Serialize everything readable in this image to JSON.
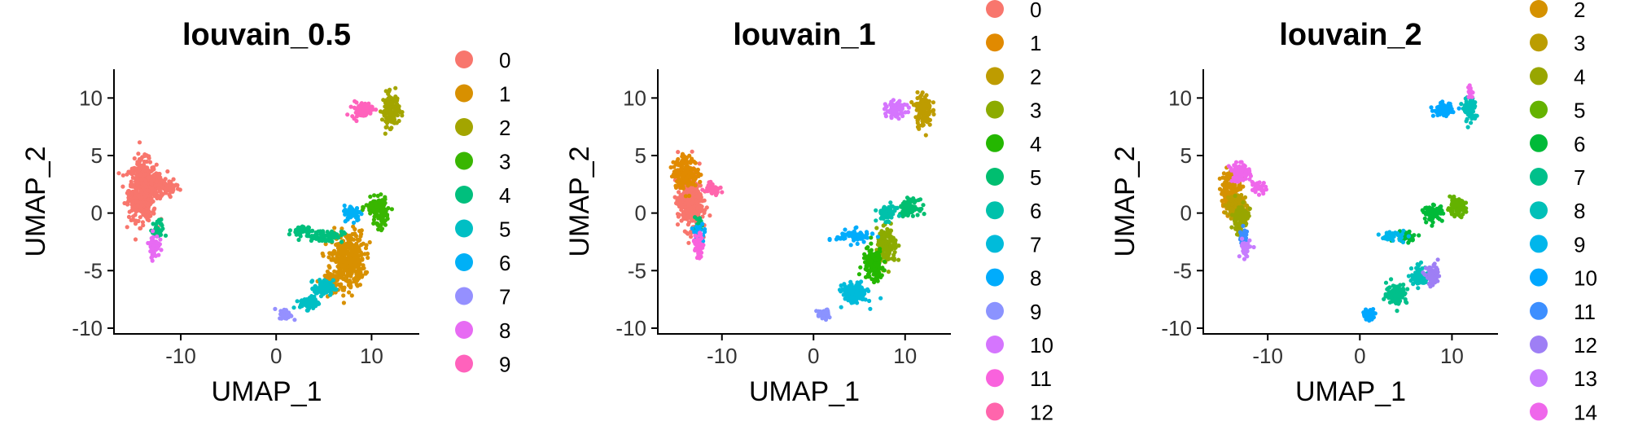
{
  "chart_data": [
    {
      "type": "scatter",
      "title": "louvain_0.5",
      "xlabel": "UMAP_1",
      "ylabel": "UMAP_2",
      "xlim": [
        -17,
        15
      ],
      "ylim": [
        -10.5,
        12.5
      ],
      "xticks": [
        -10,
        0,
        10
      ],
      "yticks": [
        10,
        5,
        0,
        -5,
        -10
      ],
      "xtick_labels": [
        "-10",
        "0",
        "10"
      ],
      "ytick_labels": [
        "10",
        "5",
        "0",
        "-5",
        "-10"
      ],
      "legend": {
        "position": "right",
        "labels": [
          "0",
          "1",
          "2",
          "3",
          "4",
          "5",
          "6",
          "7",
          "8",
          "9"
        ]
      },
      "colors": [
        "#F8766D",
        "#D89000",
        "#A3A500",
        "#39B600",
        "#00BF7D",
        "#00BFC4",
        "#00B0F6",
        "#9590FF",
        "#E76BF3",
        "#FF62BC"
      ],
      "clusters": [
        {
          "name": "0",
          "blobs": [
            [
              -14,
              2,
              1.3,
              2.3,
              520
            ],
            [
              -12.5,
              2.5,
              1.0,
              1.0,
              120
            ],
            [
              -11,
              2.2,
              0.8,
              0.5,
              40
            ]
          ]
        },
        {
          "name": "1",
          "blobs": [
            [
              7.5,
              -4,
              1.6,
              2.2,
              360
            ],
            [
              6,
              -6,
              0.8,
              0.8,
              60
            ]
          ]
        },
        {
          "name": "2",
          "blobs": [
            [
              12,
              9,
              0.8,
              1.3,
              140
            ]
          ]
        },
        {
          "name": "3",
          "blobs": [
            [
              10.5,
              0.5,
              1.0,
              0.7,
              110
            ],
            [
              11,
              -0.5,
              0.6,
              0.8,
              40
            ]
          ]
        },
        {
          "name": "4",
          "blobs": [
            [
              5,
              -2,
              1.8,
              0.5,
              80
            ],
            [
              2.5,
              -1.5,
              0.8,
              0.4,
              40
            ],
            [
              -12.5,
              -1.5,
              0.6,
              0.8,
              30
            ]
          ]
        },
        {
          "name": "5",
          "blobs": [
            [
              5,
              -6.5,
              0.9,
              0.6,
              90
            ],
            [
              3.5,
              -7.8,
              0.9,
              0.5,
              80
            ]
          ]
        },
        {
          "name": "6",
          "blobs": [
            [
              8,
              0,
              0.8,
              0.6,
              70
            ]
          ]
        },
        {
          "name": "7",
          "blobs": [
            [
              1,
              -8.8,
              0.6,
              0.4,
              50
            ]
          ]
        },
        {
          "name": "8",
          "blobs": [
            [
              -12.8,
              -2.8,
              0.5,
              0.9,
              60
            ]
          ]
        },
        {
          "name": "9",
          "blobs": [
            [
              9,
              9,
              1.0,
              0.6,
              90
            ]
          ]
        }
      ]
    },
    {
      "type": "scatter",
      "title": "louvain_1",
      "xlabel": "UMAP_1",
      "ylabel": "UMAP_2",
      "xlim": [
        -17,
        15
      ],
      "ylim": [
        -10.5,
        12.5
      ],
      "xticks": [
        -10,
        0,
        10
      ],
      "yticks": [
        10,
        5,
        0,
        -5,
        -10
      ],
      "xtick_labels": [
        "-10",
        "0",
        "10"
      ],
      "ytick_labels": [
        "10",
        "5",
        "0",
        "-5",
        "-10"
      ],
      "legend": {
        "position": "right",
        "labels": [
          "0",
          "1",
          "2",
          "3",
          "4",
          "5",
          "6",
          "7",
          "8",
          "9",
          "10",
          "11",
          "12"
        ]
      },
      "colors": [
        "#F8766D",
        "#E18A00",
        "#BE9C00",
        "#8CAB00",
        "#24B700",
        "#00BE70",
        "#00C1AB",
        "#00BBDA",
        "#00ACFC",
        "#8B93FF",
        "#D575FE",
        "#F962DD",
        "#FF65AC"
      ],
      "clusters": [
        {
          "name": "0",
          "blobs": [
            [
              -13.5,
              1,
              1.2,
              2.2,
              380
            ]
          ]
        },
        {
          "name": "1",
          "blobs": [
            [
              -14,
              3.5,
              1.2,
              1.2,
              200
            ]
          ]
        },
        {
          "name": "2",
          "blobs": [
            [
              12,
              9,
              0.8,
              1.3,
              140
            ]
          ]
        },
        {
          "name": "3",
          "blobs": [
            [
              8,
              -3,
              1.0,
              1.4,
              150
            ]
          ]
        },
        {
          "name": "4",
          "blobs": [
            [
              6.5,
              -4.5,
              1.0,
              1.3,
              150
            ]
          ]
        },
        {
          "name": "5",
          "blobs": [
            [
              10.5,
              0.5,
              0.9,
              0.6,
              100
            ],
            [
              -12.5,
              -1,
              0.5,
              0.6,
              20
            ]
          ]
        },
        {
          "name": "6",
          "blobs": [
            [
              8,
              0,
              0.9,
              0.6,
              80
            ]
          ]
        },
        {
          "name": "7",
          "blobs": [
            [
              4.5,
              -7,
              1.2,
              0.8,
              140
            ]
          ]
        },
        {
          "name": "8",
          "blobs": [
            [
              4.5,
              -2,
              1.8,
              0.5,
              80
            ],
            [
              -12.5,
              -1.8,
              0.6,
              0.7,
              30
            ]
          ]
        },
        {
          "name": "9",
          "blobs": [
            [
              1,
              -8.8,
              0.6,
              0.4,
              50
            ]
          ]
        },
        {
          "name": "10",
          "blobs": [
            [
              9,
              9,
              1.0,
              0.6,
              90
            ]
          ]
        },
        {
          "name": "11",
          "blobs": [
            [
              -12.6,
              -2.8,
              0.5,
              0.9,
              50
            ]
          ]
        },
        {
          "name": "12",
          "blobs": [
            [
              -11,
              2.2,
              0.8,
              0.5,
              40
            ]
          ]
        }
      ]
    },
    {
      "type": "scatter",
      "title": "louvain_2",
      "xlabel": "UMAP_1",
      "ylabel": "UMAP_2",
      "xlim": [
        -17,
        15
      ],
      "ylim": [
        -10.5,
        12.5
      ],
      "xticks": [
        -10,
        0,
        10
      ],
      "yticks": [
        10,
        5,
        0,
        -5,
        -10
      ],
      "xtick_labels": [
        "-10",
        "0",
        "10"
      ],
      "ytick_labels": [
        "10",
        "5",
        "0",
        "-5",
        "-10"
      ],
      "legend": {
        "position": "right",
        "labels": [
          "2",
          "3",
          "4",
          "5",
          "6",
          "7",
          "8",
          "9",
          "10",
          "11",
          "12",
          "13",
          "14"
        ]
      },
      "colors": [
        "#D59100",
        "#BB9D00",
        "#98A600",
        "#64B200",
        "#00BA38",
        "#00C08B",
        "#00C0B8",
        "#00B6EB",
        "#00A7FF",
        "#3D8FFF",
        "#9E7FF5",
        "#C77CFF",
        "#EF67EB"
      ],
      "clusters": [
        {
          "name": "2",
          "blobs": [
            [
              -14,
              2,
              1.0,
              1.5,
              180
            ]
          ]
        },
        {
          "name": "3",
          "blobs": [
            [
              -13.3,
              0.5,
              1.0,
              1.0,
              140
            ]
          ]
        },
        {
          "name": "4",
          "blobs": [
            [
              -13,
              -0.5,
              0.8,
              1.2,
              100
            ]
          ]
        },
        {
          "name": "5",
          "blobs": [
            [
              10.5,
              0.5,
              0.9,
              0.6,
              100
            ]
          ]
        },
        {
          "name": "6",
          "blobs": [
            [
              8,
              0,
              0.9,
              0.6,
              80
            ],
            [
              5,
              -2,
              1.2,
              0.4,
              40
            ]
          ]
        },
        {
          "name": "7",
          "blobs": [
            [
              4,
              -7,
              1.0,
              0.8,
              120
            ]
          ]
        },
        {
          "name": "8",
          "blobs": [
            [
              6.5,
              -5.5,
              0.8,
              0.8,
              80
            ],
            [
              12,
              9,
              0.6,
              1.0,
              80
            ]
          ]
        },
        {
          "name": "9",
          "blobs": [
            [
              3.5,
              -2,
              1.2,
              0.4,
              40
            ]
          ]
        },
        {
          "name": "10",
          "blobs": [
            [
              1,
              -8.8,
              0.6,
              0.4,
              50
            ],
            [
              9,
              9,
              0.9,
              0.5,
              70
            ]
          ]
        },
        {
          "name": "11",
          "blobs": [
            [
              -12.6,
              -2.2,
              0.5,
              0.7,
              30
            ]
          ]
        },
        {
          "name": "12",
          "blobs": [
            [
              8,
              -5.5,
              0.7,
              0.8,
              70
            ]
          ]
        },
        {
          "name": "13",
          "blobs": [
            [
              -12.5,
              -3,
              0.5,
              0.8,
              40
            ]
          ]
        },
        {
          "name": "14",
          "blobs": [
            [
              -13,
              3.5,
              1.0,
              0.7,
              80
            ],
            [
              12,
              10.5,
              0.3,
              0.5,
              20
            ],
            [
              -11,
              2.2,
              0.7,
              0.5,
              30
            ]
          ]
        }
      ]
    }
  ]
}
